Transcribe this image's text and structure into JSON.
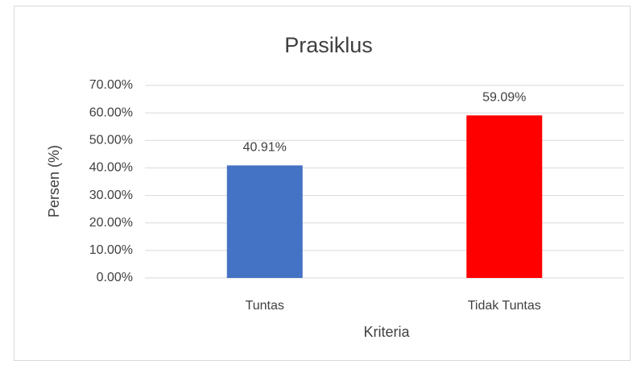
{
  "chart_data": {
    "type": "bar",
    "title": "Prasiklus",
    "x_label": "Kriteria",
    "y_label": "Persen (%)",
    "categories": [
      "Tuntas",
      "Tidak Tuntas"
    ],
    "values": [
      40.91,
      59.09
    ],
    "value_labels": [
      "40.91%",
      "59.09%"
    ],
    "colors": [
      "#4472c4",
      "#ff0000"
    ],
    "ylim": [
      0,
      70
    ],
    "yticks": [
      {
        "value": 0,
        "label": "0.00%"
      },
      {
        "value": 10,
        "label": "10.00%"
      },
      {
        "value": 20,
        "label": "20.00%"
      },
      {
        "value": 30,
        "label": "30.00%"
      },
      {
        "value": 40,
        "label": "40.00%"
      },
      {
        "value": 50,
        "label": "50.00%"
      },
      {
        "value": 60,
        "label": "60.00%"
      },
      {
        "value": 70,
        "label": "70.00%"
      }
    ],
    "grid": true
  }
}
